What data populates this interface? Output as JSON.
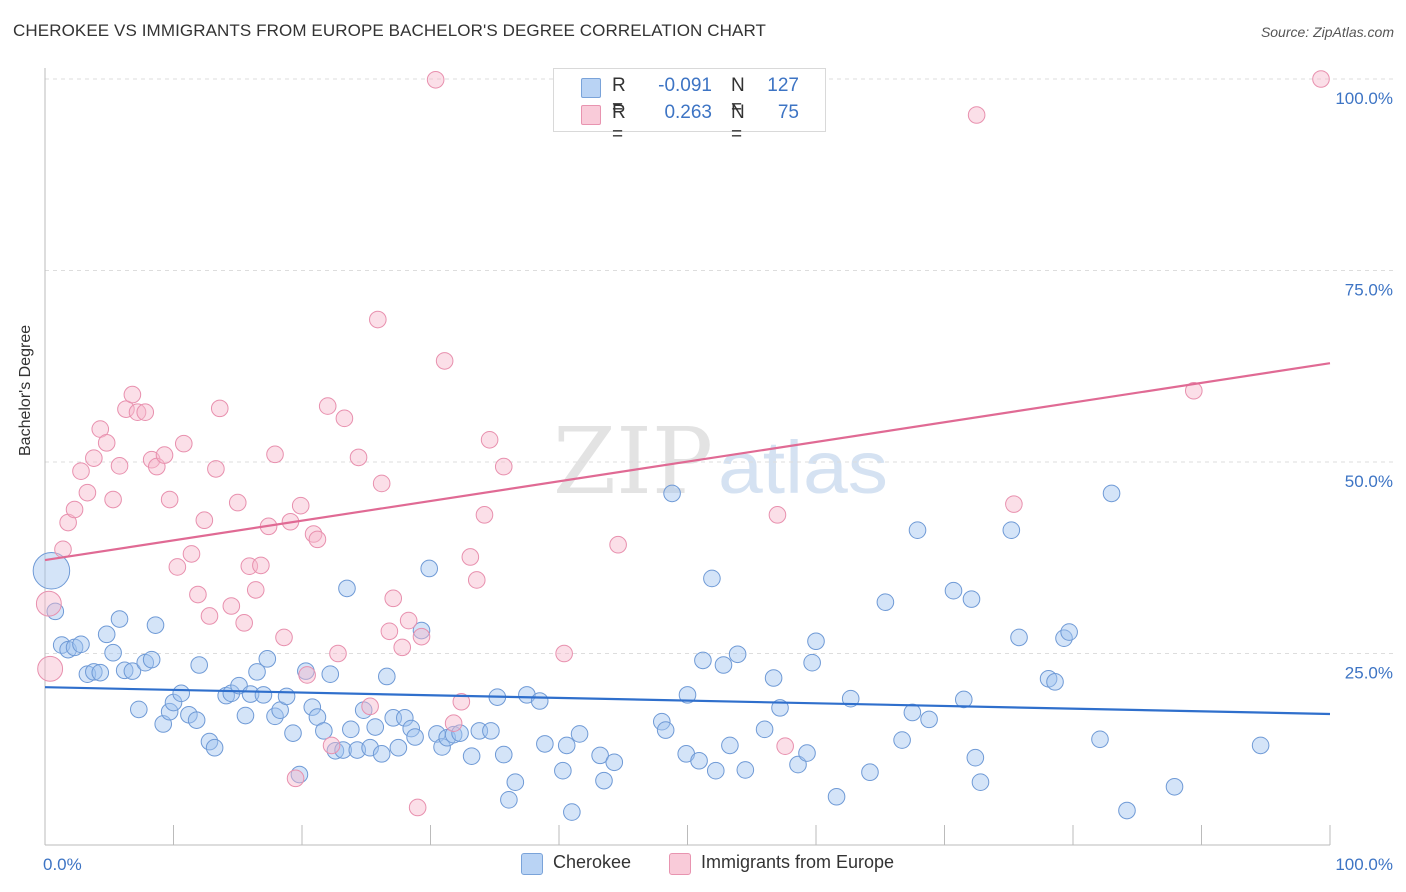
{
  "title": "CHEROKEE VS IMMIGRANTS FROM EUROPE BACHELOR'S DEGREE CORRELATION CHART",
  "source": "Source: ZipAtlas.com",
  "watermark": {
    "zip": "ZIP",
    "atlas": "atlas"
  },
  "colors": {
    "blue_fill": "rgba(160,195,240,0.45)",
    "blue_stroke": "#6f9ad6",
    "blue_line": "#2f6fcc",
    "pink_fill": "rgba(247,185,205,0.45)",
    "pink_stroke": "#e890ae",
    "pink_line": "#e06a94",
    "tick_text": "#3d74c4",
    "grid": "#dddddd"
  },
  "stats": [
    {
      "swatch": "blue",
      "r_label": "R =",
      "r_value": "-0.091",
      "n_label": "N =",
      "n_value": "127"
    },
    {
      "swatch": "pink",
      "r_label": "R =",
      "r_value": "0.263",
      "n_label": "N =",
      "n_value": "75"
    }
  ],
  "legend": [
    {
      "swatch": "blue",
      "label": "Cherokee"
    },
    {
      "swatch": "pink",
      "label": "Immigrants from Europe"
    }
  ],
  "chart_data": {
    "type": "scatter",
    "title": "CHEROKEE VS IMMIGRANTS FROM EUROPE BACHELOR'S DEGREE CORRELATION CHART",
    "xlabel": "",
    "ylabel": "Bachelor's Degree",
    "xlim": [
      0,
      100
    ],
    "ylim": [
      0,
      100
    ],
    "x_tick_labels": [
      {
        "value": 0,
        "label": "0.0%"
      },
      {
        "value": 100,
        "label": "100.0%"
      }
    ],
    "y_tick_labels": [
      {
        "value": 25,
        "label": "25.0%"
      },
      {
        "value": 50,
        "label": "50.0%"
      },
      {
        "value": 75,
        "label": "75.0%"
      },
      {
        "value": 100,
        "label": "100.0%"
      }
    ],
    "grid": true,
    "series": [
      {
        "name": "Cherokee",
        "color": "blue",
        "trend": {
          "x": [
            0,
            100
          ],
          "y": [
            20.6,
            17.1
          ]
        },
        "points": [
          [
            0.5,
            35.8,
            2.2
          ],
          [
            0.8,
            30.5,
            1
          ],
          [
            1.3,
            26.1,
            1
          ],
          [
            1.8,
            25.5,
            1
          ],
          [
            2.3,
            25.8,
            1
          ],
          [
            2.8,
            26.2,
            1
          ],
          [
            3.3,
            22.3,
            1
          ],
          [
            3.8,
            22.6,
            1
          ],
          [
            4.3,
            22.5,
            1
          ],
          [
            4.8,
            27.5,
            1
          ],
          [
            5.3,
            25.1,
            1
          ],
          [
            5.8,
            29.5,
            1
          ],
          [
            6.2,
            22.8,
            1
          ],
          [
            6.8,
            22.7,
            1
          ],
          [
            7.3,
            17.7,
            1
          ],
          [
            7.8,
            23.8,
            1
          ],
          [
            8.3,
            24.2,
            1
          ],
          [
            8.6,
            28.7,
            1
          ],
          [
            9.2,
            15.8,
            1
          ],
          [
            9.7,
            17.4,
            1
          ],
          [
            10.0,
            18.6,
            1
          ],
          [
            10.6,
            19.8,
            1
          ],
          [
            11.2,
            17.0,
            1
          ],
          [
            11.8,
            16.3,
            1
          ],
          [
            12.0,
            23.5,
            1
          ],
          [
            12.8,
            13.5,
            1
          ],
          [
            13.2,
            12.7,
            1
          ],
          [
            14.1,
            19.5,
            1
          ],
          [
            14.5,
            19.8,
            1
          ],
          [
            15.1,
            20.8,
            1
          ],
          [
            15.6,
            16.9,
            1
          ],
          [
            16.0,
            19.7,
            1
          ],
          [
            16.5,
            22.6,
            1
          ],
          [
            17.0,
            19.6,
            1
          ],
          [
            17.3,
            24.3,
            1
          ],
          [
            17.9,
            16.8,
            1
          ],
          [
            18.3,
            17.6,
            1
          ],
          [
            18.8,
            19.4,
            1
          ],
          [
            19.3,
            14.6,
            1
          ],
          [
            19.8,
            9.2,
            1
          ],
          [
            20.3,
            22.7,
            1
          ],
          [
            20.8,
            18.0,
            1
          ],
          [
            21.2,
            16.7,
            1
          ],
          [
            21.7,
            14.9,
            1
          ],
          [
            22.2,
            22.3,
            1
          ],
          [
            22.6,
            12.3,
            1
          ],
          [
            23.2,
            12.4,
            1
          ],
          [
            23.5,
            33.5,
            1
          ],
          [
            23.8,
            15.1,
            1
          ],
          [
            24.3,
            12.4,
            1
          ],
          [
            24.8,
            17.6,
            1
          ],
          [
            25.3,
            12.7,
            1
          ],
          [
            25.7,
            15.4,
            1
          ],
          [
            26.2,
            11.9,
            1
          ],
          [
            26.6,
            22.0,
            1
          ],
          [
            27.1,
            16.6,
            1
          ],
          [
            27.5,
            12.7,
            1
          ],
          [
            28.0,
            16.6,
            1
          ],
          [
            28.5,
            15.2,
            1
          ],
          [
            28.8,
            14.1,
            1
          ],
          [
            29.3,
            28.0,
            1
          ],
          [
            29.9,
            36.1,
            1
          ],
          [
            30.5,
            14.5,
            1
          ],
          [
            30.9,
            12.8,
            1
          ],
          [
            31.3,
            14.0,
            1
          ],
          [
            31.8,
            14.4,
            1
          ],
          [
            32.3,
            14.6,
            1
          ],
          [
            33.2,
            11.6,
            1
          ],
          [
            33.8,
            14.9,
            1
          ],
          [
            34.7,
            14.9,
            1
          ],
          [
            35.2,
            19.3,
            1
          ],
          [
            35.7,
            11.8,
            1
          ],
          [
            36.1,
            5.9,
            1
          ],
          [
            36.6,
            8.2,
            1
          ],
          [
            37.5,
            19.6,
            1
          ],
          [
            38.5,
            18.8,
            1
          ],
          [
            38.9,
            13.2,
            1
          ],
          [
            40.3,
            9.7,
            1
          ],
          [
            40.6,
            13.0,
            1
          ],
          [
            41.0,
            4.3,
            1
          ],
          [
            41.6,
            14.5,
            1
          ],
          [
            43.2,
            11.7,
            1
          ],
          [
            43.5,
            8.4,
            1
          ],
          [
            44.3,
            10.8,
            1
          ],
          [
            48.0,
            16.1,
            1
          ],
          [
            48.3,
            15.0,
            1
          ],
          [
            48.8,
            45.9,
            1
          ],
          [
            49.9,
            11.9,
            1
          ],
          [
            50.0,
            19.6,
            1
          ],
          [
            50.9,
            11.0,
            1
          ],
          [
            51.2,
            24.1,
            1
          ],
          [
            51.9,
            34.8,
            1
          ],
          [
            52.2,
            9.7,
            1
          ],
          [
            52.8,
            23.5,
            1
          ],
          [
            53.3,
            13.0,
            1
          ],
          [
            53.9,
            24.9,
            1
          ],
          [
            54.5,
            9.8,
            1
          ],
          [
            56.0,
            15.1,
            1
          ],
          [
            56.7,
            21.8,
            1
          ],
          [
            57.2,
            17.9,
            1
          ],
          [
            58.6,
            10.5,
            1
          ],
          [
            59.3,
            12.0,
            1
          ],
          [
            59.7,
            23.8,
            1
          ],
          [
            60.0,
            26.6,
            1
          ],
          [
            61.6,
            6.3,
            1
          ],
          [
            62.7,
            19.1,
            1
          ],
          [
            64.2,
            9.5,
            1
          ],
          [
            65.4,
            31.7,
            1
          ],
          [
            66.7,
            13.7,
            1
          ],
          [
            67.5,
            17.3,
            1
          ],
          [
            67.9,
            41.1,
            1
          ],
          [
            68.8,
            16.4,
            1
          ],
          [
            70.7,
            33.2,
            1
          ],
          [
            71.5,
            19.0,
            1
          ],
          [
            72.1,
            32.1,
            1
          ],
          [
            72.4,
            11.4,
            1
          ],
          [
            72.8,
            8.2,
            1
          ],
          [
            75.2,
            41.1,
            1
          ],
          [
            75.8,
            27.1,
            1
          ],
          [
            78.1,
            21.7,
            1
          ],
          [
            78.6,
            21.3,
            1
          ],
          [
            79.3,
            27.0,
            1
          ],
          [
            79.7,
            27.8,
            1
          ],
          [
            82.1,
            13.8,
            1
          ],
          [
            83.0,
            45.9,
            1
          ],
          [
            84.2,
            4.5,
            1
          ],
          [
            87.9,
            7.6,
            1
          ],
          [
            94.6,
            13.0,
            1
          ]
        ]
      },
      {
        "name": "Immigrants from Europe",
        "color": "pink",
        "trend": {
          "x": [
            0,
            100
          ],
          "y": [
            37.2,
            62.9
          ]
        },
        "points": [
          [
            0.3,
            31.5,
            1.5
          ],
          [
            0.4,
            23.0,
            1.5
          ],
          [
            1.4,
            38.6,
            1
          ],
          [
            1.8,
            42.1,
            1
          ],
          [
            2.3,
            43.8,
            1
          ],
          [
            2.8,
            48.8,
            1
          ],
          [
            3.3,
            46.0,
            1
          ],
          [
            3.8,
            50.5,
            1
          ],
          [
            4.3,
            54.3,
            1
          ],
          [
            4.8,
            52.5,
            1
          ],
          [
            5.3,
            45.1,
            1
          ],
          [
            5.8,
            49.5,
            1
          ],
          [
            6.3,
            56.9,
            1
          ],
          [
            6.8,
            58.8,
            1
          ],
          [
            7.2,
            56.5,
            1
          ],
          [
            7.8,
            56.5,
            1
          ],
          [
            8.3,
            50.3,
            1
          ],
          [
            8.7,
            49.4,
            1
          ],
          [
            9.3,
            50.9,
            1
          ],
          [
            9.7,
            45.1,
            1
          ],
          [
            10.3,
            36.3,
            1
          ],
          [
            10.8,
            52.4,
            1
          ],
          [
            11.4,
            38.0,
            1
          ],
          [
            11.9,
            32.7,
            1
          ],
          [
            12.4,
            42.4,
            1
          ],
          [
            12.8,
            29.9,
            1
          ],
          [
            13.3,
            49.1,
            1
          ],
          [
            13.6,
            57.0,
            1
          ],
          [
            14.5,
            31.2,
            1
          ],
          [
            15.0,
            44.7,
            1
          ],
          [
            15.5,
            29.0,
            1
          ],
          [
            15.9,
            36.4,
            1
          ],
          [
            16.4,
            33.3,
            1
          ],
          [
            16.8,
            36.5,
            1
          ],
          [
            17.4,
            41.6,
            1
          ],
          [
            17.9,
            51.0,
            1
          ],
          [
            18.6,
            27.1,
            1
          ],
          [
            19.1,
            42.2,
            1
          ],
          [
            19.5,
            8.7,
            1
          ],
          [
            19.9,
            44.3,
            1
          ],
          [
            20.4,
            22.2,
            1
          ],
          [
            20.9,
            40.6,
            1
          ],
          [
            21.2,
            39.9,
            1
          ],
          [
            22.0,
            57.3,
            1
          ],
          [
            22.3,
            13.0,
            1
          ],
          [
            22.8,
            25.0,
            1
          ],
          [
            23.3,
            55.7,
            1
          ],
          [
            24.4,
            50.6,
            1
          ],
          [
            25.3,
            18.1,
            1
          ],
          [
            25.9,
            68.6,
            1
          ],
          [
            26.2,
            47.2,
            1
          ],
          [
            26.8,
            27.9,
            1
          ],
          [
            27.1,
            32.2,
            1
          ],
          [
            27.8,
            25.8,
            1
          ],
          [
            28.3,
            29.3,
            1
          ],
          [
            29.0,
            4.9,
            1
          ],
          [
            29.3,
            27.2,
            1
          ],
          [
            30.4,
            99.9,
            1
          ],
          [
            31.1,
            63.2,
            1
          ],
          [
            31.8,
            15.9,
            1
          ],
          [
            32.4,
            18.7,
            1
          ],
          [
            33.1,
            37.6,
            1
          ],
          [
            33.6,
            34.6,
            1
          ],
          [
            34.2,
            43.1,
            1
          ],
          [
            34.6,
            52.9,
            1
          ],
          [
            35.7,
            49.4,
            1
          ],
          [
            40.4,
            25.0,
            1
          ],
          [
            44.6,
            39.2,
            1
          ],
          [
            57.0,
            43.1,
            1
          ],
          [
            57.6,
            12.9,
            1
          ],
          [
            72.5,
            95.3,
            1
          ],
          [
            75.4,
            44.5,
            1
          ],
          [
            89.4,
            59.3,
            1
          ],
          [
            99.3,
            100.0,
            1
          ]
        ]
      }
    ]
  }
}
